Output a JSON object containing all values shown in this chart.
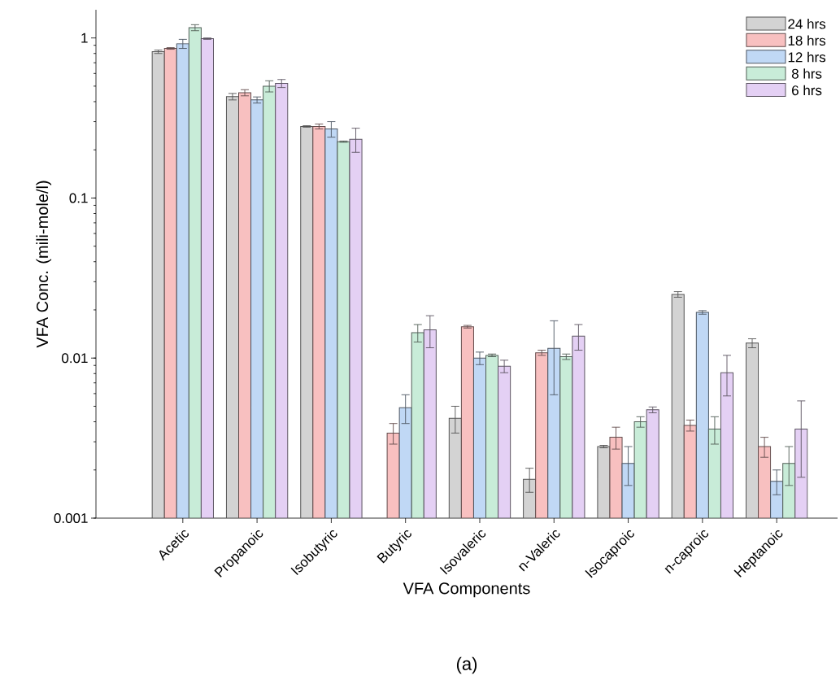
{
  "chart_data": {
    "type": "bar",
    "xlabel": "VFA Components",
    "ylabel": "VFA Conc. (mili-mole/l)",
    "annotations": [
      "(a)"
    ],
    "categories": [
      "Acetic",
      "Propanoic",
      "Isobutyric",
      "Butyric",
      "Isovaleric",
      "n-Valeric",
      "Isocaproic",
      "n-caproic",
      "Heptanoic"
    ],
    "series": [
      {
        "name": "24 hrs",
        "color": "#d3d3d3",
        "values": [
          0.82,
          0.43,
          0.28,
          null,
          0.0042,
          0.00175,
          0.0028,
          0.025,
          0.0124
        ],
        "errors": [
          0.02,
          0.02,
          0.003,
          null,
          0.0008,
          0.0003,
          5e-05,
          0.001,
          0.0008
        ]
      },
      {
        "name": "18 hrs",
        "color": "#f8c0c0",
        "values": [
          0.86,
          0.455,
          0.28,
          0.0034,
          0.0157,
          0.0108,
          0.0032,
          0.0038,
          0.0028
        ],
        "errors": [
          0.01,
          0.02,
          0.01,
          0.0005,
          0.0003,
          0.0004,
          0.0005,
          0.0003,
          0.0004
        ]
      },
      {
        "name": "12 hrs",
        "color": "#c0d8f5",
        "values": [
          0.92,
          0.41,
          0.27,
          0.0049,
          0.01,
          0.0115,
          0.0022,
          0.0193,
          0.0017
        ],
        "errors": [
          0.06,
          0.018,
          0.03,
          0.001,
          0.0009,
          0.0056,
          0.0006,
          0.0005,
          0.0003
        ]
      },
      {
        "name": "8 hrs",
        "color": "#c8ecd8",
        "values": [
          1.16,
          0.5,
          0.225,
          0.0144,
          0.0104,
          0.0102,
          0.004,
          0.0036,
          0.0022
        ],
        "errors": [
          0.05,
          0.04,
          0.002,
          0.0018,
          0.0002,
          0.0004,
          0.0003,
          0.0007,
          0.0006
        ]
      },
      {
        "name": "6 hrs",
        "color": "#e4d0f4",
        "values": [
          0.99,
          0.52,
          0.233,
          0.015,
          0.0089,
          0.0137,
          0.00475,
          0.0081,
          0.0036
        ],
        "errors": [
          0.01,
          0.03,
          0.04,
          0.0034,
          0.0008,
          0.0025,
          0.0002,
          0.0023,
          0.0018
        ]
      }
    ],
    "log": true,
    "ylim": [
      0.001,
      1.5
    ],
    "yticks": [
      0.001,
      0.01,
      0.1,
      1
    ],
    "legend": "top right"
  }
}
